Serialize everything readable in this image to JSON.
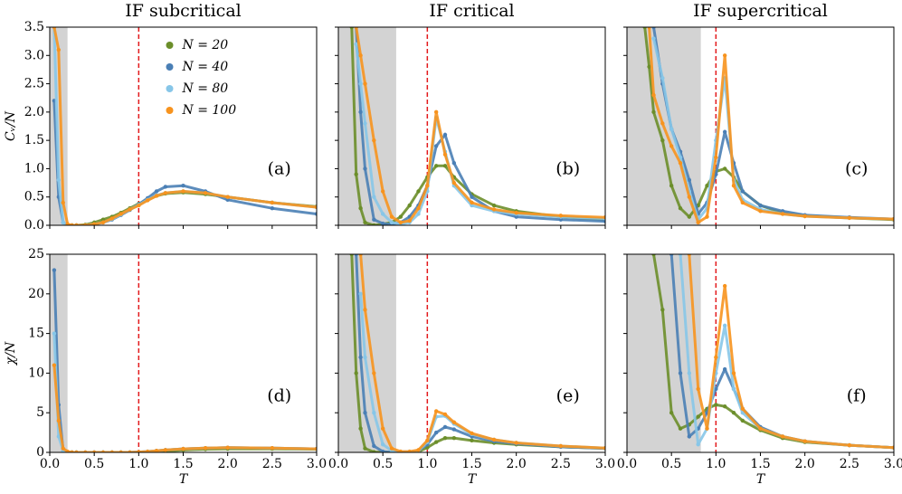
{
  "chart_data": [
    {
      "type": "line",
      "title": "IF subcritical",
      "ylabel": "Cᵥ/N",
      "annotation": "(a)",
      "legend": "upper center",
      "x": [
        0.05,
        0.1,
        0.15,
        0.2,
        0.25,
        0.3,
        0.4,
        0.5,
        0.6,
        0.7,
        0.8,
        0.9,
        1.0,
        1.1,
        1.2,
        1.3,
        1.5,
        1.75,
        2.0,
        2.5,
        3.0
      ],
      "series": [
        {
          "name": "N = 20",
          "color": "#6b8e2a",
          "values": [
            null,
            null,
            null,
            0,
            0,
            0,
            0.01,
            0.05,
            0.1,
            0.15,
            0.22,
            0.3,
            0.38,
            0.45,
            0.52,
            0.56,
            0.58,
            0.55,
            0.5,
            0.4,
            0.33
          ]
        },
        {
          "name": "N = 40",
          "color": "#4a7fb5",
          "values": [
            2.2,
            0.5,
            0.05,
            0,
            0,
            0,
            0,
            0.02,
            0.05,
            0.1,
            0.18,
            0.27,
            0.37,
            0.48,
            0.6,
            0.68,
            0.7,
            0.6,
            0.45,
            0.3,
            0.2
          ]
        },
        {
          "name": "N = 80",
          "color": "#87c6e8",
          "values": [
            3.5,
            0.8,
            0.05,
            0,
            0,
            0,
            0,
            0.02,
            0.05,
            0.11,
            0.19,
            0.28,
            0.36,
            0.45,
            0.53,
            0.57,
            0.6,
            0.57,
            0.5,
            0.4,
            0.32
          ]
        },
        {
          "name": "N = 100",
          "color": "#f7931e",
          "values": [
            3.5,
            3.1,
            0.4,
            0.02,
            0,
            0,
            0,
            0.02,
            0.05,
            0.12,
            0.2,
            0.28,
            0.35,
            0.44,
            0.52,
            0.57,
            0.6,
            0.57,
            0.5,
            0.4,
            0.32
          ]
        }
      ],
      "xlim": [
        0,
        3
      ],
      "ylim": [
        0,
        3.5
      ],
      "shade": [
        0,
        0.2
      ],
      "vline": 1,
      "xticks": [
        0,
        0.5,
        1,
        1.5,
        2,
        2.5,
        3
      ],
      "xtick_labels": false,
      "yticks": [
        {
          "value": 0,
          "label": "0.0"
        },
        0.5,
        {
          "value": 1,
          "label": "1.0"
        },
        1.5,
        {
          "value": 2,
          "label": "2.0"
        },
        2.5,
        {
          "value": 3,
          "label": "3.0"
        },
        3.5
      ]
    },
    {
      "type": "line",
      "title": "IF critical",
      "annotation": "(b)",
      "x": [
        0.05,
        0.1,
        0.15,
        0.2,
        0.25,
        0.3,
        0.4,
        0.5,
        0.6,
        0.7,
        0.8,
        0.9,
        1.0,
        1.1,
        1.2,
        1.3,
        1.5,
        1.75,
        2.0,
        2.5,
        3.0
      ],
      "series": [
        {
          "color": "#6b8e2a",
          "values": [
            null,
            null,
            3.5,
            0.9,
            0.3,
            0.05,
            0,
            0.02,
            0.05,
            0.15,
            0.35,
            0.6,
            0.85,
            1.05,
            1.05,
            0.85,
            0.55,
            0.35,
            0.25,
            0.15,
            0.1
          ]
        },
        {
          "color": "#4a7fb5",
          "values": [
            null,
            null,
            null,
            3.5,
            2.0,
            1.0,
            0.1,
            0.03,
            0.02,
            0.05,
            0.15,
            0.35,
            0.7,
            1.4,
            1.6,
            1.1,
            0.5,
            0.25,
            0.15,
            0.1,
            0.07
          ]
        },
        {
          "color": "#87c6e8",
          "values": [
            null,
            null,
            null,
            3.2,
            2.5,
            1.8,
            0.5,
            0.2,
            0.05,
            0.02,
            0.05,
            0.2,
            0.6,
            1.9,
            1.3,
            0.7,
            0.35,
            0.25,
            0.2,
            0.15,
            0.12
          ]
        },
        {
          "color": "#f7931e",
          "values": [
            null,
            null,
            null,
            3.5,
            3.0,
            2.5,
            1.5,
            0.6,
            0.15,
            0.05,
            0.08,
            0.3,
            0.7,
            2.0,
            1.25,
            0.75,
            0.4,
            0.28,
            0.22,
            0.17,
            0.14
          ]
        }
      ],
      "xlim": [
        0,
        3
      ],
      "ylim": [
        0,
        3.5
      ],
      "shade": [
        0,
        0.65
      ],
      "vline": 1,
      "xticks": [
        0,
        0.5,
        1,
        1.5,
        2,
        2.5,
        3
      ],
      "xtick_labels": false,
      "yticks": [
        0,
        0.5,
        1,
        1.5,
        2,
        2.5,
        3,
        3.5
      ],
      "ytick_labels": false
    },
    {
      "type": "line",
      "title": "IF supercritical",
      "annotation": "(c)",
      "x": [
        0.05,
        0.1,
        0.15,
        0.2,
        0.25,
        0.3,
        0.4,
        0.5,
        0.6,
        0.7,
        0.8,
        0.9,
        1.0,
        1.1,
        1.2,
        1.3,
        1.5,
        1.75,
        2.0,
        2.5,
        3.0
      ],
      "series": [
        {
          "color": "#6b8e2a",
          "values": [
            null,
            null,
            null,
            3.5,
            2.8,
            2.0,
            1.5,
            0.7,
            0.3,
            0.15,
            0.35,
            0.7,
            0.95,
            1.0,
            0.85,
            0.6,
            0.35,
            0.22,
            0.17,
            0.13,
            0.1
          ]
        },
        {
          "color": "#4a7fb5",
          "values": [
            null,
            null,
            null,
            null,
            null,
            3.5,
            2.5,
            1.7,
            1.3,
            0.8,
            0.2,
            0.4,
            0.9,
            1.65,
            1.1,
            0.6,
            0.35,
            0.25,
            0.18,
            0.14,
            0.11
          ]
        },
        {
          "color": "#87c6e8",
          "values": [
            null,
            null,
            null,
            null,
            null,
            3.3,
            2.6,
            1.7,
            1.2,
            0.6,
            0.1,
            0.3,
            1.5,
            2.6,
            0.8,
            0.45,
            0.28,
            0.2,
            0.16,
            0.13,
            0.11
          ]
        },
        {
          "color": "#f7931e",
          "values": [
            null,
            null,
            null,
            null,
            3.5,
            2.3,
            1.8,
            1.4,
            1.1,
            0.5,
            0.05,
            0.15,
            1.2,
            3.0,
            0.7,
            0.4,
            0.25,
            0.2,
            0.16,
            0.13,
            0.11
          ]
        }
      ],
      "xlim": [
        0,
        3
      ],
      "ylim": [
        0,
        3.5
      ],
      "shade": [
        0,
        0.83
      ],
      "vline": 1,
      "xticks": [
        0,
        0.5,
        1,
        1.5,
        2,
        2.5,
        3
      ],
      "xtick_labels": false,
      "yticks": [
        0,
        0.5,
        1,
        1.5,
        2,
        2.5,
        3,
        3.5
      ],
      "ytick_labels": false
    },
    {
      "type": "line",
      "ylabel": "χ/N",
      "xlabel": "T",
      "annotation": "(d)",
      "x": [
        0.05,
        0.1,
        0.15,
        0.2,
        0.25,
        0.3,
        0.4,
        0.5,
        0.6,
        0.7,
        0.8,
        0.9,
        1.0,
        1.1,
        1.2,
        1.3,
        1.5,
        1.75,
        2.0,
        2.5,
        3.0
      ],
      "series": [
        {
          "color": "#6b8e2a",
          "values": [
            null,
            null,
            null,
            0,
            0,
            0,
            0,
            0,
            0,
            0,
            0,
            0,
            0,
            0.05,
            0.1,
            0.15,
            0.3,
            0.4,
            0.45,
            0.45,
            0.4
          ]
        },
        {
          "color": "#4a7fb5",
          "values": [
            23,
            6,
            0.2,
            0,
            0,
            0,
            0,
            0,
            0,
            0,
            0,
            0,
            0.05,
            0.1,
            0.2,
            0.3,
            0.45,
            0.55,
            0.6,
            0.55,
            0.45
          ]
        },
        {
          "color": "#87c6e8",
          "values": [
            15,
            2,
            0.2,
            0,
            0,
            0,
            0,
            0,
            0,
            0,
            0,
            0,
            0.05,
            0.1,
            0.2,
            0.3,
            0.45,
            0.55,
            0.6,
            0.55,
            0.45
          ]
        },
        {
          "color": "#f7931e",
          "values": [
            11,
            4,
            0.5,
            0.1,
            0,
            0,
            0,
            0,
            0,
            0,
            0,
            0,
            0.05,
            0.1,
            0.2,
            0.3,
            0.45,
            0.55,
            0.6,
            0.55,
            0.45
          ]
        }
      ],
      "xlim": [
        0,
        3
      ],
      "ylim": [
        0,
        25
      ],
      "shade": [
        0,
        0.2
      ],
      "vline": 1,
      "xticks": [
        {
          "value": 0,
          "label": "0.0"
        },
        0.5,
        {
          "value": 1,
          "label": "1.0"
        },
        1.5,
        {
          "value": 2,
          "label": "2.0"
        },
        2.5,
        {
          "value": 3,
          "label": "3.0"
        }
      ],
      "yticks": [
        0,
        5,
        10,
        15,
        20,
        25
      ]
    },
    {
      "type": "line",
      "xlabel": "T",
      "annotation": "(e)",
      "x": [
        0.05,
        0.1,
        0.15,
        0.2,
        0.25,
        0.3,
        0.4,
        0.5,
        0.6,
        0.7,
        0.8,
        0.9,
        1.0,
        1.1,
        1.2,
        1.3,
        1.5,
        1.75,
        2.0,
        2.5,
        3.0
      ],
      "series": [
        {
          "color": "#6b8e2a",
          "values": [
            null,
            null,
            25,
            10,
            3,
            0.5,
            0.05,
            0,
            0,
            0,
            0,
            0.1,
            0.6,
            1.3,
            1.8,
            1.8,
            1.5,
            1.2,
            1.0,
            0.7,
            0.5
          ]
        },
        {
          "color": "#4a7fb5",
          "values": [
            null,
            null,
            null,
            25,
            12,
            5,
            0.8,
            0.1,
            0,
            0,
            0,
            0.2,
            1.0,
            2.5,
            3.2,
            2.9,
            2.0,
            1.4,
            1.1,
            0.7,
            0.5
          ]
        },
        {
          "color": "#87c6e8",
          "values": [
            null,
            null,
            null,
            null,
            20,
            12,
            5,
            1,
            0.2,
            0.1,
            0.1,
            0.2,
            1.3,
            4.5,
            4.6,
            3.6,
            2.3,
            1.6,
            1.2,
            0.8,
            0.55
          ]
        },
        {
          "color": "#f7931e",
          "values": [
            null,
            null,
            null,
            null,
            25,
            18,
            10,
            3,
            0.5,
            0.1,
            0.1,
            0.3,
            1.5,
            5.2,
            4.8,
            3.8,
            2.4,
            1.6,
            1.2,
            0.8,
            0.55
          ]
        }
      ],
      "xlim": [
        0,
        3
      ],
      "ylim": [
        0,
        25
      ],
      "shade": [
        0,
        0.65
      ],
      "vline": 1,
      "xticks": [
        {
          "value": 0,
          "label": "0.0"
        },
        0.5,
        {
          "value": 1,
          "label": "1.0"
        },
        1.5,
        {
          "value": 2,
          "label": "2.0"
        },
        2.5,
        {
          "value": 3,
          "label": "3.0"
        }
      ],
      "yticks": [
        0,
        5,
        10,
        15,
        20,
        25
      ],
      "ytick_labels": false
    },
    {
      "type": "line",
      "xlabel": "T",
      "annotation": "(f)",
      "x": [
        0.05,
        0.1,
        0.15,
        0.2,
        0.25,
        0.3,
        0.4,
        0.5,
        0.6,
        0.7,
        0.8,
        0.9,
        1.0,
        1.1,
        1.2,
        1.3,
        1.5,
        1.75,
        2.0,
        2.5,
        3.0
      ],
      "series": [
        {
          "color": "#6b8e2a",
          "values": [
            null,
            null,
            null,
            null,
            null,
            25,
            18,
            5,
            3,
            3.5,
            4.5,
            5.5,
            6,
            5.8,
            5,
            4,
            2.8,
            1.8,
            1.3,
            0.9,
            0.6
          ]
        },
        {
          "color": "#4a7fb5",
          "values": [
            null,
            null,
            null,
            null,
            null,
            null,
            null,
            25,
            10,
            2,
            3,
            5,
            8,
            10.5,
            8,
            5.5,
            3.2,
            2,
            1.4,
            0.9,
            0.6
          ]
        },
        {
          "color": "#87c6e8",
          "values": [
            null,
            null,
            null,
            null,
            null,
            null,
            null,
            null,
            25,
            10,
            1,
            3,
            10,
            16,
            8,
            5,
            3,
            2,
            1.4,
            0.9,
            0.6
          ]
        },
        {
          "color": "#f7931e",
          "values": [
            null,
            null,
            null,
            null,
            null,
            null,
            null,
            null,
            null,
            25,
            8,
            3,
            12,
            21,
            10,
            5.5,
            3,
            2,
            1.4,
            0.9,
            0.6
          ]
        }
      ],
      "xlim": [
        0,
        3
      ],
      "ylim": [
        0,
        25
      ],
      "shade": [
        0,
        0.83
      ],
      "vline": 1,
      "xticks": [
        {
          "value": 0,
          "label": "0.0"
        },
        0.5,
        {
          "value": 1,
          "label": "1.0"
        },
        1.5,
        {
          "value": 2,
          "label": "2.0"
        },
        2.5,
        {
          "value": 3,
          "label": "3.0"
        }
      ],
      "yticks": [
        0,
        5,
        10,
        15,
        20,
        25
      ],
      "ytick_labels": false
    }
  ]
}
